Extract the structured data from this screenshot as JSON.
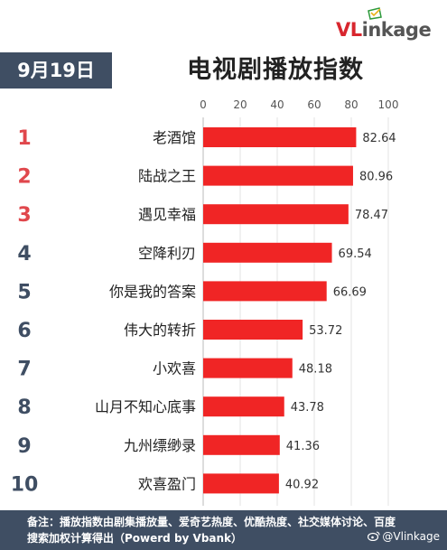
{
  "brand": {
    "logo_v": "VL",
    "logo_rest": "inkage"
  },
  "header": {
    "date": "9月19日",
    "title": "电视剧播放指数"
  },
  "chart_data": {
    "type": "bar",
    "orientation": "horizontal",
    "title": "电视剧播放指数",
    "categories": [
      "老酒馆",
      "陆战之王",
      "遇见幸福",
      "空降利刃",
      "你是我的答案",
      "伟大的转折",
      "小欢喜",
      "山月不知心底事",
      "九州缥缈录",
      "欢喜盈门"
    ],
    "ranks": [
      "1",
      "2",
      "3",
      "4",
      "5",
      "6",
      "7",
      "8",
      "9",
      "10"
    ],
    "values": [
      82.64,
      80.96,
      78.47,
      69.54,
      66.69,
      53.72,
      48.18,
      43.78,
      41.36,
      40.92
    ],
    "xlim": [
      0,
      100
    ],
    "xticks": [
      "0",
      "20",
      "40",
      "60",
      "80",
      "100"
    ],
    "grid": true,
    "bar_color": "#f02525",
    "top_rank_color": "#e0474c",
    "rank_color": "#3f4e63"
  },
  "footer": {
    "note": "备注：播放指数由剧集播放量、爱奇艺热度、优酷热度、社交媒体讨论、百度搜索加权计算得出（Powerd by Vbank）",
    "weibo_handle": "@Vlinkage"
  }
}
